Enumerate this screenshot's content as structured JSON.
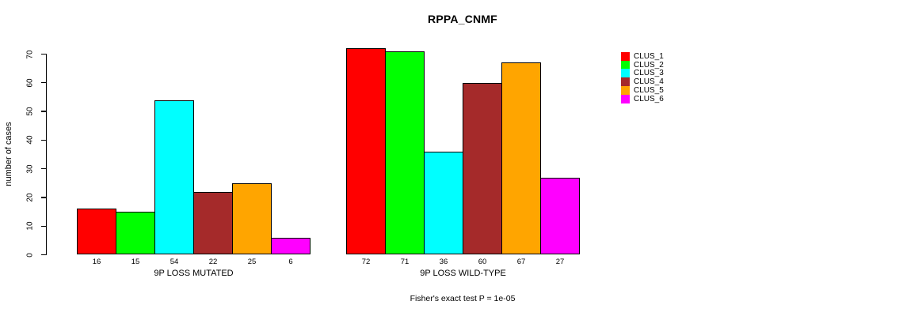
{
  "chart_data": {
    "type": "bar",
    "title": "RPPA_CNMF",
    "ylabel": "number of cases",
    "xlabel": "",
    "ylim": [
      0,
      70
    ],
    "yticks": [
      0,
      10,
      20,
      30,
      40,
      50,
      60,
      70
    ],
    "grid": false,
    "legend_position": "right",
    "annotation": "Fisher's exact test P = 1e-05",
    "groups": [
      "9P LOSS MUTATED",
      "9P LOSS WILD-TYPE"
    ],
    "series": [
      {
        "name": "CLUS_1",
        "color": "#FF0000",
        "values": [
          16,
          72
        ]
      },
      {
        "name": "CLUS_2",
        "color": "#00FF00",
        "values": [
          15,
          71
        ]
      },
      {
        "name": "CLUS_3",
        "color": "#00FFFF",
        "values": [
          54,
          36
        ]
      },
      {
        "name": "CLUS_4",
        "color": "#A52A2A",
        "values": [
          22,
          60
        ]
      },
      {
        "name": "CLUS_5",
        "color": "#FFA500",
        "values": [
          25,
          67
        ]
      },
      {
        "name": "CLUS_6",
        "color": "#FF00FF",
        "values": [
          6,
          27
        ]
      }
    ],
    "bar_value_labels": {
      "9P LOSS MUTATED": [
        16,
        15,
        54,
        22,
        25,
        6
      ],
      "9P LOSS WILD-TYPE": [
        72,
        71,
        36,
        60,
        67,
        27
      ]
    },
    "colors": {
      "background": "#FFFFFF",
      "axis": "#000000",
      "bar_border": "#000000",
      "text": "#000000"
    }
  }
}
